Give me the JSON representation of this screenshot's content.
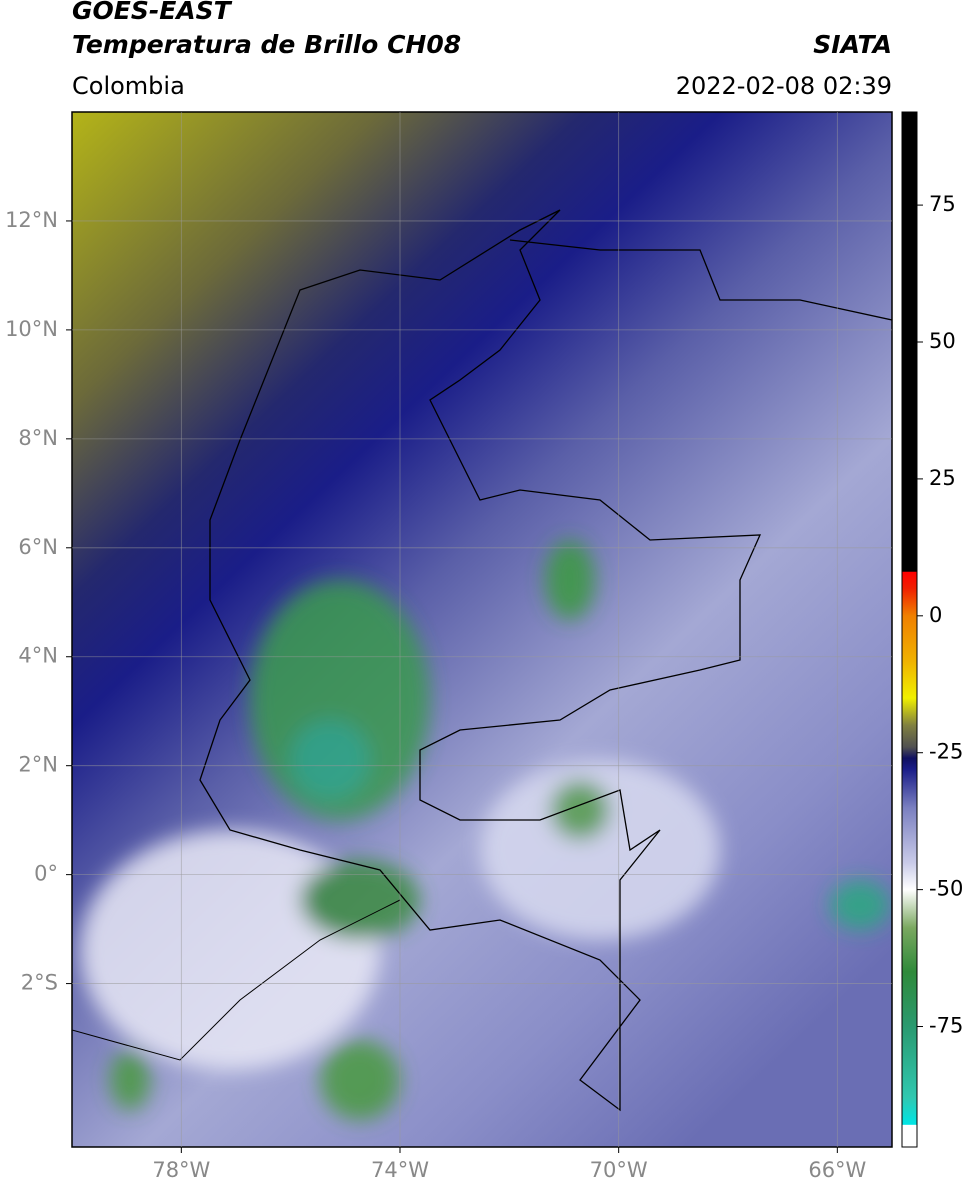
{
  "header": {
    "title": "GOES-EAST",
    "subtitle": "Temperatura de Brillo CH08",
    "source": "SIATA",
    "region": "Colombia",
    "datetime": "2022-02-08 02:39"
  },
  "map": {
    "xlim": [
      -80,
      -65
    ],
    "ylim": [
      -5,
      14
    ],
    "xticks": [
      {
        "value": -78,
        "label": "78°W"
      },
      {
        "value": -74,
        "label": "74°W"
      },
      {
        "value": -70,
        "label": "70°W"
      },
      {
        "value": -66,
        "label": "66°W"
      }
    ],
    "yticks": [
      {
        "value": 12,
        "label": "12°N"
      },
      {
        "value": 10,
        "label": "10°N"
      },
      {
        "value": 8,
        "label": "8°N"
      },
      {
        "value": 6,
        "label": "6°N"
      },
      {
        "value": 4,
        "label": "4°N"
      },
      {
        "value": 2,
        "label": "2°N"
      },
      {
        "value": 0,
        "label": "0°"
      },
      {
        "value": -2,
        "label": "2°S"
      }
    ],
    "grid": true
  },
  "colorbar": {
    "lim": [
      -97,
      92
    ],
    "ticks": [
      75,
      50,
      25,
      0,
      -25,
      -50,
      -75
    ],
    "colormap": [
      {
        "value": -97,
        "color": "#ffffff"
      },
      {
        "value": -93,
        "color": "#ffffff"
      },
      {
        "value": -92.9,
        "color": "#00e5e5"
      },
      {
        "value": -88,
        "color": "#30c8b0"
      },
      {
        "value": -75,
        "color": "#2a9a70"
      },
      {
        "value": -65,
        "color": "#2f8a3a"
      },
      {
        "value": -57,
        "color": "#7aa860"
      },
      {
        "value": -50,
        "color": "#ffffff"
      },
      {
        "value": -45,
        "color": "#c8cae8"
      },
      {
        "value": -35,
        "color": "#7a7fc0"
      },
      {
        "value": -28,
        "color": "#1a1d88"
      },
      {
        "value": -26,
        "color": "#101060"
      },
      {
        "value": -24,
        "color": "#505050"
      },
      {
        "value": -20,
        "color": "#808040"
      },
      {
        "value": -15,
        "color": "#f0f000"
      },
      {
        "value": -8,
        "color": "#f0b000"
      },
      {
        "value": 0,
        "color": "#f08000"
      },
      {
        "value": 5,
        "color": "#f02000"
      },
      {
        "value": 8,
        "color": "#ff0000"
      },
      {
        "value": 8.1,
        "color": "#000000"
      },
      {
        "value": 92,
        "color": "#000000"
      }
    ]
  }
}
